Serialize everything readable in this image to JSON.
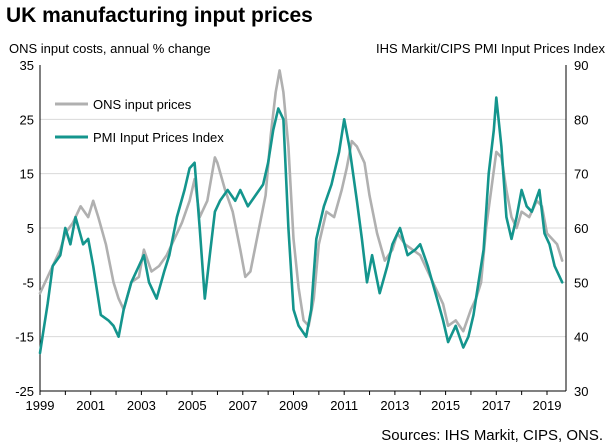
{
  "chart_data": {
    "type": "line",
    "title": "UK manufacturing input prices",
    "y_left_label": "ONS input costs, annual % change",
    "y_right_label": "IHS Markit/CIPS PMI Input Prices Index",
    "source": "Sources: IHS Markit, CIPS, ONS.",
    "ylim_left": [
      -25,
      35
    ],
    "ylim_right": [
      30,
      90
    ],
    "yticks_left": [
      "35",
      "25",
      "15",
      "5",
      "-5",
      "-15",
      "-25"
    ],
    "yticks_right": [
      "90",
      "80",
      "70",
      "60",
      "50",
      "40",
      "30"
    ],
    "xlim": [
      1999,
      2019.75
    ],
    "xticks": [
      "1999",
      "2001",
      "2003",
      "2005",
      "2007",
      "2009",
      "2011",
      "2013",
      "2015",
      "2017",
      "2019"
    ],
    "grid": true,
    "legend_position": "top-left",
    "colors": {
      "ons": "#b0b0b0",
      "pmi": "#14958d"
    },
    "series": [
      {
        "name": "ONS input prices",
        "axis": "left",
        "points": [
          [
            1999.0,
            -7
          ],
          [
            1999.2,
            -5
          ],
          [
            1999.5,
            -2
          ],
          [
            1999.8,
            1
          ],
          [
            2000.0,
            4
          ],
          [
            2000.3,
            6
          ],
          [
            2000.6,
            9
          ],
          [
            2000.9,
            7
          ],
          [
            2001.1,
            10
          ],
          [
            2001.3,
            7
          ],
          [
            2001.6,
            2
          ],
          [
            2001.9,
            -5
          ],
          [
            2002.1,
            -8
          ],
          [
            2002.3,
            -10
          ],
          [
            2002.6,
            -5
          ],
          [
            2002.9,
            -4
          ],
          [
            2003.1,
            1
          ],
          [
            2003.4,
            -3
          ],
          [
            2003.7,
            -2
          ],
          [
            2004.0,
            0
          ],
          [
            2004.3,
            3
          ],
          [
            2004.6,
            6
          ],
          [
            2004.9,
            10
          ],
          [
            2005.1,
            14
          ],
          [
            2005.3,
            7
          ],
          [
            2005.6,
            10
          ],
          [
            2005.9,
            18
          ],
          [
            2006.0,
            17
          ],
          [
            2006.3,
            12
          ],
          [
            2006.6,
            8
          ],
          [
            2006.9,
            1
          ],
          [
            2007.1,
            -4
          ],
          [
            2007.3,
            -3
          ],
          [
            2007.6,
            4
          ],
          [
            2007.9,
            11
          ],
          [
            2008.1,
            22
          ],
          [
            2008.3,
            30
          ],
          [
            2008.45,
            34
          ],
          [
            2008.6,
            30
          ],
          [
            2008.8,
            20
          ],
          [
            2009.0,
            3
          ],
          [
            2009.2,
            -6
          ],
          [
            2009.4,
            -12
          ],
          [
            2009.6,
            -13
          ],
          [
            2009.8,
            -8
          ],
          [
            2010.0,
            2
          ],
          [
            2010.3,
            8
          ],
          [
            2010.6,
            7
          ],
          [
            2010.9,
            12
          ],
          [
            2011.1,
            16
          ],
          [
            2011.3,
            21
          ],
          [
            2011.5,
            20
          ],
          [
            2011.8,
            17
          ],
          [
            2012.0,
            11
          ],
          [
            2012.3,
            4
          ],
          [
            2012.6,
            -1
          ],
          [
            2012.9,
            1
          ],
          [
            2013.1,
            4
          ],
          [
            2013.4,
            2
          ],
          [
            2013.7,
            1
          ],
          [
            2014.0,
            0
          ],
          [
            2014.3,
            -3
          ],
          [
            2014.6,
            -6
          ],
          [
            2014.9,
            -9
          ],
          [
            2015.1,
            -13
          ],
          [
            2015.4,
            -12
          ],
          [
            2015.7,
            -14
          ],
          [
            2016.0,
            -10
          ],
          [
            2016.2,
            -8
          ],
          [
            2016.4,
            -5
          ],
          [
            2016.6,
            5
          ],
          [
            2016.8,
            12
          ],
          [
            2017.0,
            19
          ],
          [
            2017.2,
            18
          ],
          [
            2017.4,
            12
          ],
          [
            2017.6,
            7
          ],
          [
            2017.8,
            5
          ],
          [
            2018.0,
            8
          ],
          [
            2018.3,
            7
          ],
          [
            2018.6,
            10
          ],
          [
            2018.8,
            9
          ],
          [
            2019.0,
            4
          ],
          [
            2019.2,
            3
          ],
          [
            2019.4,
            2
          ],
          [
            2019.6,
            -1
          ]
        ]
      },
      {
        "name": "PMI Input Prices Index",
        "axis": "right",
        "points": [
          [
            1999.0,
            37
          ],
          [
            1999.1,
            40
          ],
          [
            1999.3,
            46
          ],
          [
            1999.5,
            53
          ],
          [
            1999.8,
            55
          ],
          [
            2000.0,
            60
          ],
          [
            2000.2,
            57
          ],
          [
            2000.4,
            62
          ],
          [
            2000.7,
            57
          ],
          [
            2000.9,
            58
          ],
          [
            2001.1,
            53
          ],
          [
            2001.4,
            44
          ],
          [
            2001.7,
            43
          ],
          [
            2001.9,
            42
          ],
          [
            2002.1,
            40
          ],
          [
            2002.3,
            45
          ],
          [
            2002.6,
            50
          ],
          [
            2002.9,
            53
          ],
          [
            2003.1,
            55
          ],
          [
            2003.3,
            50
          ],
          [
            2003.6,
            47
          ],
          [
            2003.9,
            52
          ],
          [
            2004.1,
            55
          ],
          [
            2004.4,
            62
          ],
          [
            2004.7,
            67
          ],
          [
            2004.9,
            71
          ],
          [
            2005.1,
            72
          ],
          [
            2005.3,
            60
          ],
          [
            2005.5,
            47
          ],
          [
            2005.7,
            55
          ],
          [
            2005.9,
            63
          ],
          [
            2006.1,
            65
          ],
          [
            2006.4,
            67
          ],
          [
            2006.7,
            65
          ],
          [
            2006.9,
            67
          ],
          [
            2007.2,
            64
          ],
          [
            2007.5,
            66
          ],
          [
            2007.8,
            68
          ],
          [
            2008.0,
            72
          ],
          [
            2008.2,
            78
          ],
          [
            2008.4,
            82
          ],
          [
            2008.6,
            80
          ],
          [
            2008.8,
            60
          ],
          [
            2009.0,
            45
          ],
          [
            2009.2,
            42
          ],
          [
            2009.5,
            40
          ],
          [
            2009.7,
            45
          ],
          [
            2009.9,
            58
          ],
          [
            2010.2,
            64
          ],
          [
            2010.5,
            68
          ],
          [
            2010.8,
            74
          ],
          [
            2011.0,
            80
          ],
          [
            2011.2,
            75
          ],
          [
            2011.5,
            65
          ],
          [
            2011.7,
            58
          ],
          [
            2011.9,
            50
          ],
          [
            2012.1,
            55
          ],
          [
            2012.4,
            48
          ],
          [
            2012.7,
            53
          ],
          [
            2012.9,
            57
          ],
          [
            2013.2,
            60
          ],
          [
            2013.5,
            55
          ],
          [
            2013.8,
            56
          ],
          [
            2014.0,
            57
          ],
          [
            2014.3,
            53
          ],
          [
            2014.6,
            48
          ],
          [
            2014.9,
            43
          ],
          [
            2015.1,
            39
          ],
          [
            2015.4,
            42
          ],
          [
            2015.7,
            38
          ],
          [
            2015.9,
            40
          ],
          [
            2016.1,
            44
          ],
          [
            2016.3,
            50
          ],
          [
            2016.5,
            56
          ],
          [
            2016.7,
            70
          ],
          [
            2016.9,
            78
          ],
          [
            2017.0,
            84
          ],
          [
            2017.2,
            75
          ],
          [
            2017.4,
            62
          ],
          [
            2017.6,
            58
          ],
          [
            2017.8,
            62
          ],
          [
            2018.0,
            67
          ],
          [
            2018.2,
            64
          ],
          [
            2018.4,
            63
          ],
          [
            2018.7,
            67
          ],
          [
            2018.9,
            59
          ],
          [
            2019.1,
            57
          ],
          [
            2019.3,
            53
          ],
          [
            2019.5,
            51
          ],
          [
            2019.6,
            50
          ]
        ]
      }
    ]
  }
}
